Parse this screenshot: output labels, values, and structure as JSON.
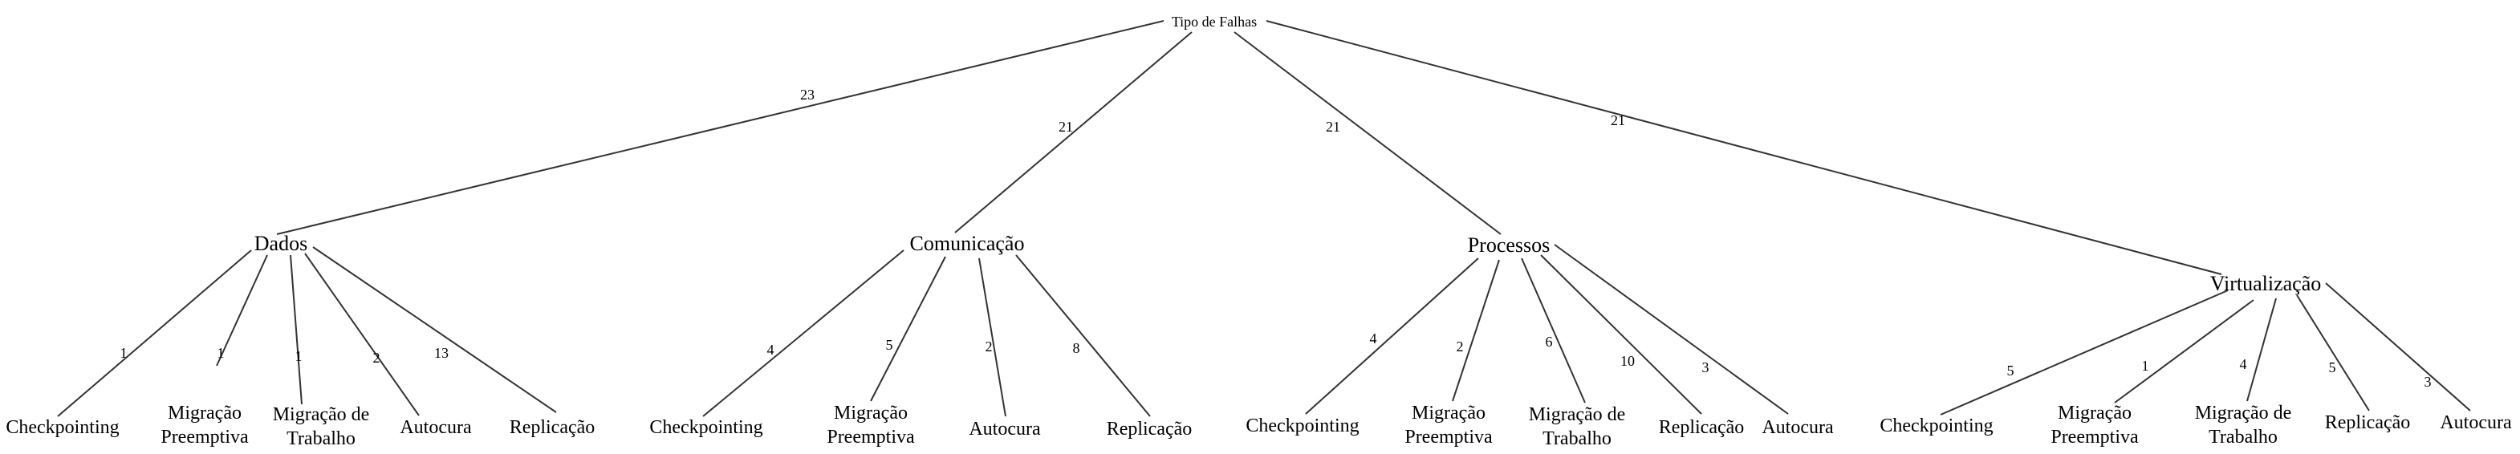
{
  "tree": {
    "root": "Tipo de Falhas",
    "categories": [
      {
        "name": "Dados",
        "weight": "23",
        "children": [
          {
            "label": [
              "Checkpointing"
            ],
            "weight": "1"
          },
          {
            "label": [
              "Migração",
              "Preemptiva"
            ],
            "weight": "1"
          },
          {
            "label": [
              "Migração de",
              "Trabalho"
            ],
            "weight": "1"
          },
          {
            "label": [
              "Autocura"
            ],
            "weight": "2"
          },
          {
            "label": [
              "Replicação"
            ],
            "weight": "13"
          }
        ]
      },
      {
        "name": "Comunicação",
        "weight": "21",
        "children": [
          {
            "label": [
              "Checkpointing"
            ],
            "weight": "4"
          },
          {
            "label": [
              "Migração",
              "Preemptiva"
            ],
            "weight": "5"
          },
          {
            "label": [
              "Autocura"
            ],
            "weight": "2"
          },
          {
            "label": [
              "Replicação"
            ],
            "weight": "8"
          }
        ]
      },
      {
        "name": "Processos",
        "weight": "21",
        "children": [
          {
            "label": [
              "Checkpointing"
            ],
            "weight": "4"
          },
          {
            "label": [
              "Migração",
              "Preemptiva"
            ],
            "weight": "2"
          },
          {
            "label": [
              "Migração de",
              "Trabalho"
            ],
            "weight": "6"
          },
          {
            "label": [
              "Replicação"
            ],
            "weight": "10"
          },
          {
            "label": [
              "Autocura"
            ],
            "weight": "3"
          }
        ]
      },
      {
        "name": "Virtualização",
        "weight": "21",
        "children": [
          {
            "label": [
              "Checkpointing"
            ],
            "weight": "5"
          },
          {
            "label": [
              "Migração",
              "Preemptiva"
            ],
            "weight": "1"
          },
          {
            "label": [
              "Migração de",
              "Trabalho"
            ],
            "weight": "4"
          },
          {
            "label": [
              "Replicação"
            ],
            "weight": "5"
          },
          {
            "label": [
              "Autocura"
            ],
            "weight": "3"
          }
        ]
      }
    ]
  }
}
